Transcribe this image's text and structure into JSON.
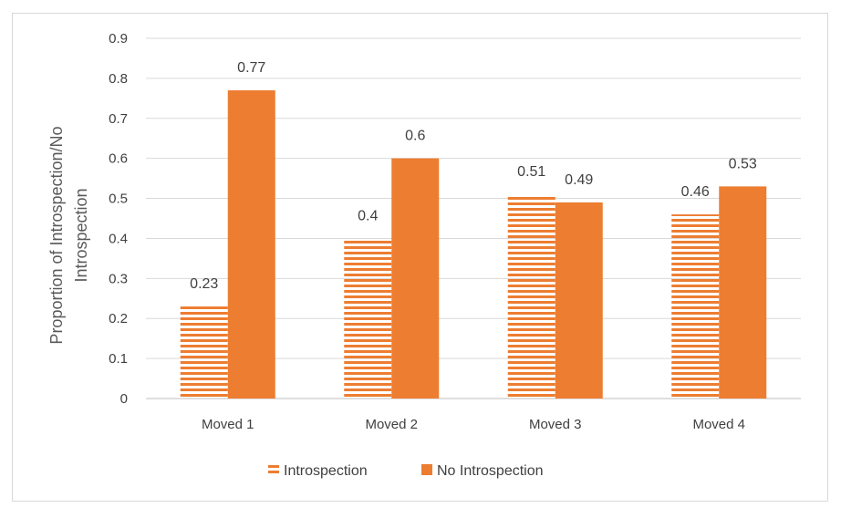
{
  "chart_data": {
    "type": "bar",
    "title": "",
    "xlabel": "",
    "ylabel_lines": [
      "Proportion of Introspection/No",
      "Introspection"
    ],
    "categories": [
      "Moved 1",
      "Moved 2",
      "Moved 3",
      "Moved 4"
    ],
    "series": [
      {
        "name": "Introspection",
        "values": [
          0.23,
          0.4,
          0.51,
          0.46
        ],
        "color": "#ED7D31",
        "pattern": "horizontal-stripes"
      },
      {
        "name": "No Introspection",
        "values": [
          0.77,
          0.6,
          0.49,
          0.53
        ],
        "color": "#ED7D31",
        "pattern": "solid"
      }
    ],
    "data_labels": [
      [
        "0.23",
        "0.4",
        "0.51",
        "0.46"
      ],
      [
        "0.77",
        "0.6",
        "0.49",
        "0.53"
      ]
    ],
    "yticks": [
      "0",
      "0.1",
      "0.2",
      "0.3",
      "0.4",
      "0.5",
      "0.6",
      "0.7",
      "0.8",
      "0.9"
    ],
    "ylim": [
      0,
      0.9
    ],
    "grid": true,
    "legend_position": "bottom"
  }
}
